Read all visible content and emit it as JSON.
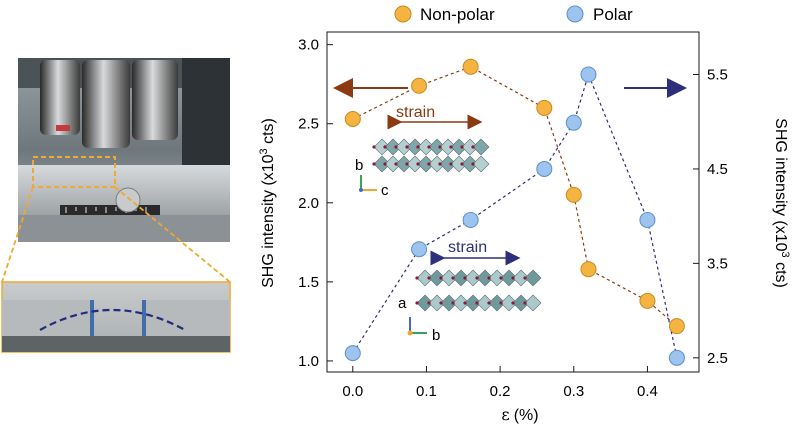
{
  "legend": {
    "items": [
      {
        "label": "Non-polar",
        "color": "#f5b342",
        "stroke": "#c98a1e"
      },
      {
        "label": "Polar",
        "color": "#9cc4ee",
        "stroke": "#5d8fc7"
      }
    ]
  },
  "photo": {
    "top_image": "microscope objectives above sample stage with bending jig",
    "bottom_image": "magnified view of bent sample between clamps",
    "bend_curve_color": "#1f2d7a",
    "highlight_color": "#f0a830"
  },
  "insets": {
    "nonpolar": {
      "label": "strain",
      "axes": [
        "b",
        "c"
      ],
      "arrow_color": "#8b3a12"
    },
    "polar": {
      "label": "strain",
      "axes": [
        "a",
        "b"
      ],
      "arrow_color": "#2d2f7a"
    }
  },
  "chart_data": {
    "type": "scatter",
    "x_label_symbol": "ε",
    "x_label_unit": "(%)",
    "y_left_label": "SHG intensity (x10",
    "y_right_label": "SHG intensity (x10",
    "y_label_superscript": "3",
    "y_label_suffix": " cts)",
    "x_ticks": [
      "0.0",
      "0.1",
      "0.2",
      "0.3",
      "0.4"
    ],
    "x_tick_values": [
      0.0,
      0.1,
      0.2,
      0.3,
      0.4
    ],
    "y_left_ticks": [
      "1.0",
      "1.5",
      "2.0",
      "2.5",
      "3.0"
    ],
    "y_left_tick_values": [
      1.0,
      1.5,
      2.0,
      2.5,
      3.0
    ],
    "y_right_ticks": [
      "2.5",
      "3.5",
      "4.5",
      "5.5"
    ],
    "y_right_tick_values": [
      2.5,
      3.5,
      4.5,
      5.5
    ],
    "xlim": [
      -0.035,
      0.47
    ],
    "ylim_left": [
      0.93,
      3.08
    ],
    "ylim_right": [
      2.35,
      5.95
    ],
    "series": [
      {
        "name": "Non-polar",
        "axis": "left",
        "color": "#f5b342",
        "stroke": "#c98a1e",
        "x": [
          0.0,
          0.09,
          0.16,
          0.26,
          0.3,
          0.32,
          0.4,
          0.44
        ],
        "y": [
          2.53,
          2.74,
          2.86,
          2.6,
          2.05,
          1.58,
          1.38,
          1.22
        ]
      },
      {
        "name": "Polar",
        "axis": "right",
        "color": "#9cc4ee",
        "stroke": "#5d8fc7",
        "x": [
          0.0,
          0.09,
          0.16,
          0.26,
          0.3,
          0.32,
          0.4,
          0.44
        ],
        "y": [
          2.55,
          3.65,
          3.96,
          4.5,
          4.99,
          5.5,
          3.96,
          2.5
        ]
      }
    ]
  }
}
